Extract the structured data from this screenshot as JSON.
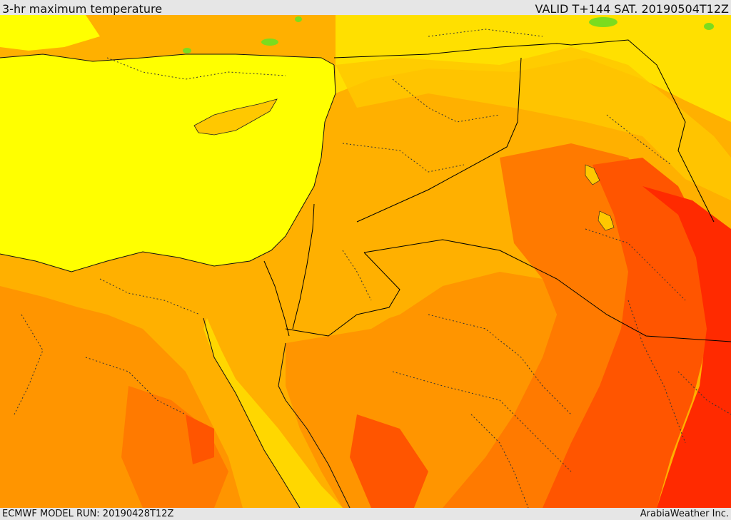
{
  "header": {
    "title": "3-hr maximum temperature",
    "valid": "VALID T+144 SAT. 20190504T12Z"
  },
  "footer": {
    "model_run": "ECMWF MODEL RUN: 20190428T12Z",
    "credit": "ArabiaWeather Inc."
  },
  "colors": {
    "sea_yellow": "#ffff00",
    "light_yellow": "#ffe000",
    "amber": "#ffc800",
    "light_orange": "#ffb000",
    "orange": "#ff9500",
    "dark_orange": "#ff7a00",
    "orange_red": "#ff5500",
    "red": "#ff2a00",
    "green": "#7cdc1e",
    "border_line": "#000000"
  },
  "map": {
    "fields": [
      "3-hr maximum temperature"
    ]
  }
}
